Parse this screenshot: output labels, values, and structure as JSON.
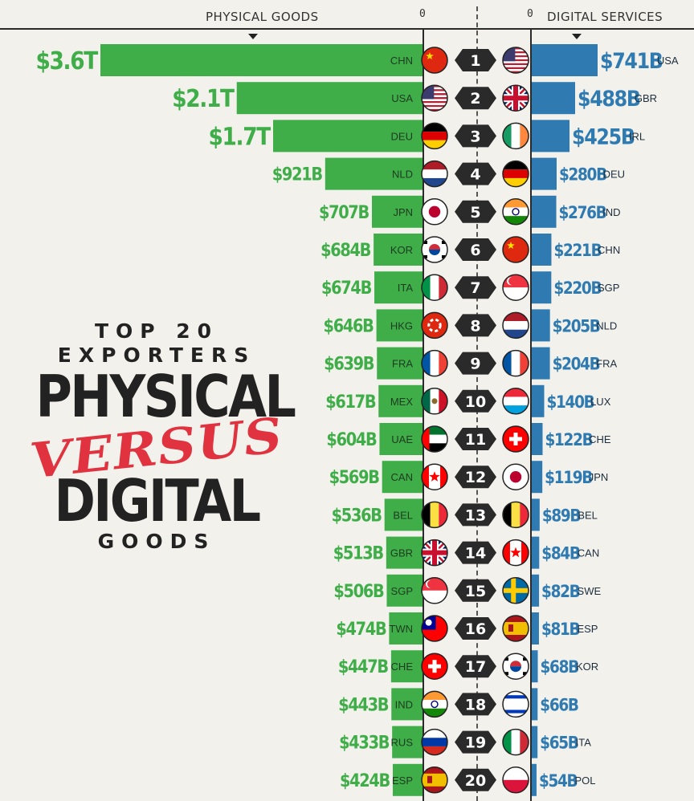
{
  "header": {
    "left_label": "PHYSICAL GOODS",
    "right_label": "DIGITAL SERVICES",
    "zero_left": "0",
    "zero_right": "0"
  },
  "title": {
    "line1": "TOP 20",
    "line2": "EXPORTERS",
    "line3": "PHYSICAL",
    "line4": "VERSUS",
    "line5": "DIGITAL",
    "line6": "GOODS"
  },
  "colors": {
    "physical": "#3fae49",
    "digital": "#2f7bb1",
    "ink": "#222222",
    "accent": "#e0323f"
  },
  "chart_data": {
    "type": "bar",
    "layout": "diverging-ranked",
    "ranks": [
      1,
      2,
      3,
      4,
      5,
      6,
      7,
      8,
      9,
      10,
      11,
      12,
      13,
      14,
      15,
      16,
      17,
      18,
      19,
      20
    ],
    "series": [
      {
        "name": "PHYSICAL GOODS",
        "countries": [
          "CHN",
          "USA",
          "DEU",
          "NLD",
          "JPN",
          "KOR",
          "ITA",
          "HKG",
          "FRA",
          "MEX",
          "UAE",
          "CAN",
          "BEL",
          "GBR",
          "SGP",
          "TWN",
          "CHE",
          "IND",
          "RUS",
          "ESP"
        ],
        "labels": [
          "$3.6T",
          "$2.1T",
          "$1.7T",
          "$921B",
          "$707B",
          "$684B",
          "$674B",
          "$646B",
          "$639B",
          "$617B",
          "$604B",
          "$569B",
          "$536B",
          "$513B",
          "$506B",
          "$474B",
          "$447B",
          "$443B",
          "$433B",
          "$424B"
        ],
        "values": [
          3600,
          2100,
          1700,
          921,
          707,
          684,
          674,
          646,
          639,
          617,
          604,
          569,
          536,
          513,
          506,
          474,
          447,
          443,
          433,
          424
        ],
        "flags": [
          "cn",
          "us",
          "de",
          "nl",
          "jp",
          "kr",
          "it",
          "hk",
          "fr",
          "mx",
          "ae",
          "ca",
          "be",
          "gb",
          "sg",
          "tw",
          "ch",
          "in",
          "ru",
          "es"
        ]
      },
      {
        "name": "DIGITAL SERVICES",
        "countries": [
          "USA",
          "GBR",
          "IRL",
          "DEU",
          "IND",
          "CHN",
          "SGP",
          "NLD",
          "FRA",
          "LUX",
          "CHE",
          "JPN",
          "BEL",
          "CAN",
          "SWE",
          "ESP",
          "KOR",
          "",
          "ITA",
          "POL"
        ],
        "labels": [
          "$741B",
          "$488B",
          "$425B",
          "$280B",
          "$276B",
          "$221B",
          "$220B",
          "$205B",
          "$204B",
          "$140B",
          "$122B",
          "$119B",
          "$89B",
          "$84B",
          "$82B",
          "$81B",
          "$68B",
          "$66B",
          "$65B",
          "$54B"
        ],
        "values": [
          741,
          488,
          425,
          280,
          276,
          221,
          220,
          205,
          204,
          140,
          122,
          119,
          89,
          84,
          82,
          81,
          68,
          66,
          65,
          54
        ],
        "flags": [
          "us",
          "gb",
          "ie",
          "de",
          "in",
          "cn",
          "sg",
          "nl",
          "fr",
          "lu",
          "ch",
          "jp",
          "be",
          "ca",
          "se",
          "es",
          "kr",
          "il",
          "it",
          "pl"
        ]
      }
    ]
  }
}
